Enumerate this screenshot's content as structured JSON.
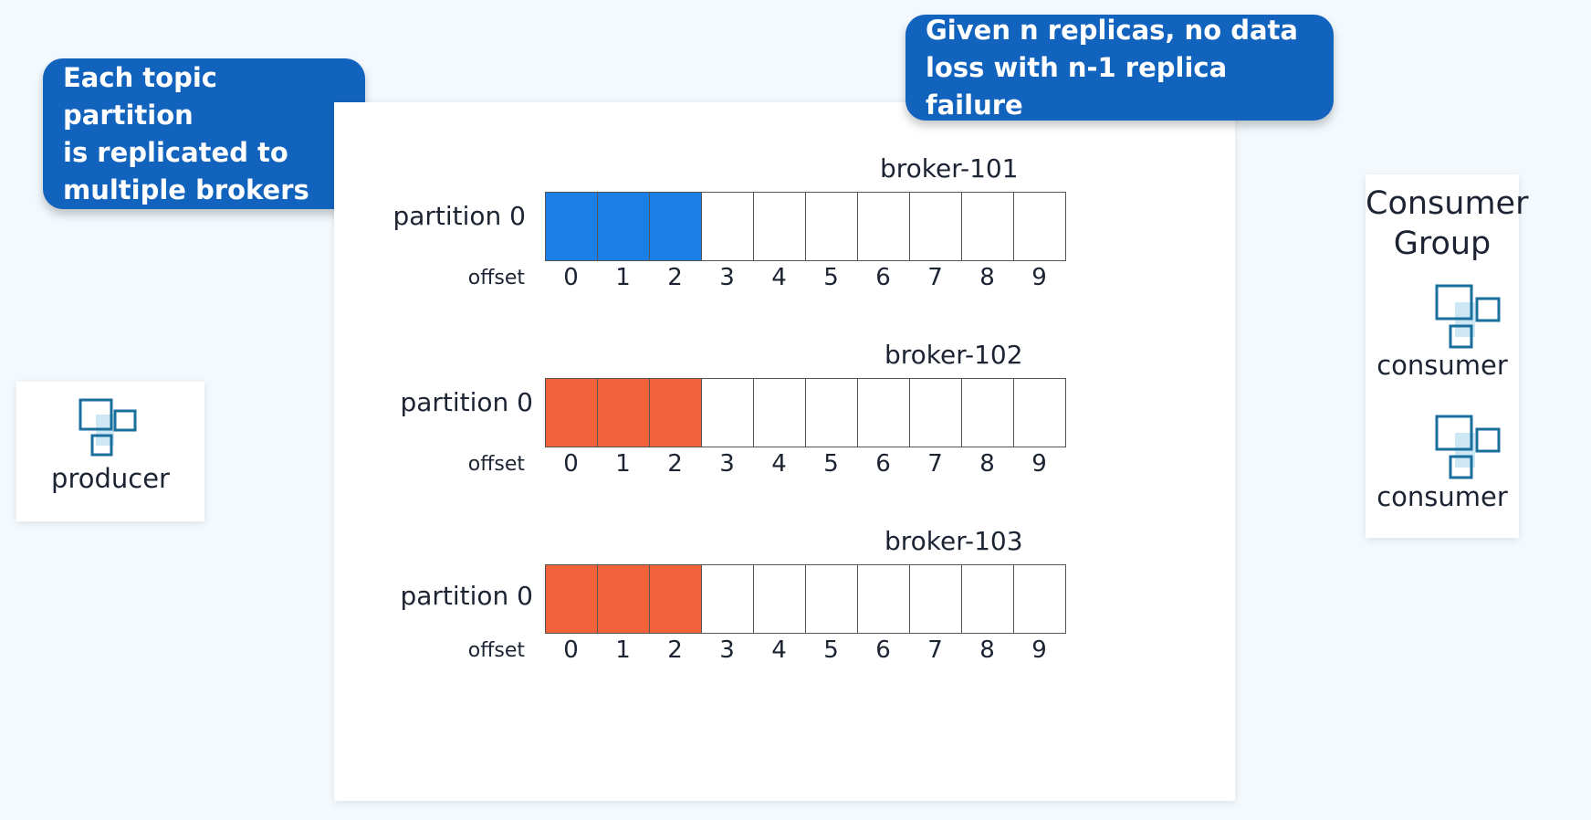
{
  "callouts": {
    "left": "Each topic partition\nis replicated to\nmultiple brokers",
    "right": "Given n replicas, no data\nloss with n-1 replica failure"
  },
  "producer": {
    "label": "producer",
    "icon": "producer-node-icon"
  },
  "consumer_group": {
    "title": "Consumer\nGroup",
    "consumers": [
      {
        "label": "consumer",
        "icon": "consumer-node-icon"
      },
      {
        "label": "consumer",
        "icon": "consumer-node-icon"
      }
    ]
  },
  "brokers": [
    {
      "name": "broker-101",
      "partition": "partition 0",
      "offset_label": "offset",
      "offsets": [
        "0",
        "1",
        "2",
        "3",
        "4",
        "5",
        "6",
        "7",
        "8",
        "9"
      ],
      "filled_count": 3,
      "fill_color": "#1b7fe8",
      "role": "leader"
    },
    {
      "name": "broker-102",
      "partition": "partition 0",
      "offset_label": "offset",
      "offsets": [
        "0",
        "1",
        "2",
        "3",
        "4",
        "5",
        "6",
        "7",
        "8",
        "9"
      ],
      "filled_count": 3,
      "fill_color": "#f2623a",
      "role": "follower"
    },
    {
      "name": "broker-103",
      "partition": "partition 0",
      "offset_label": "offset",
      "offsets": [
        "0",
        "1",
        "2",
        "3",
        "4",
        "5",
        "6",
        "7",
        "8",
        "9"
      ],
      "filled_count": 3,
      "fill_color": "#f2623a",
      "role": "follower"
    }
  ],
  "colors": {
    "leader": "#1b7fe8",
    "follower": "#f2623a",
    "callout": "#1263bd",
    "icon_stroke": "#1a6f9c",
    "icon_fill": "#cde8f4"
  }
}
